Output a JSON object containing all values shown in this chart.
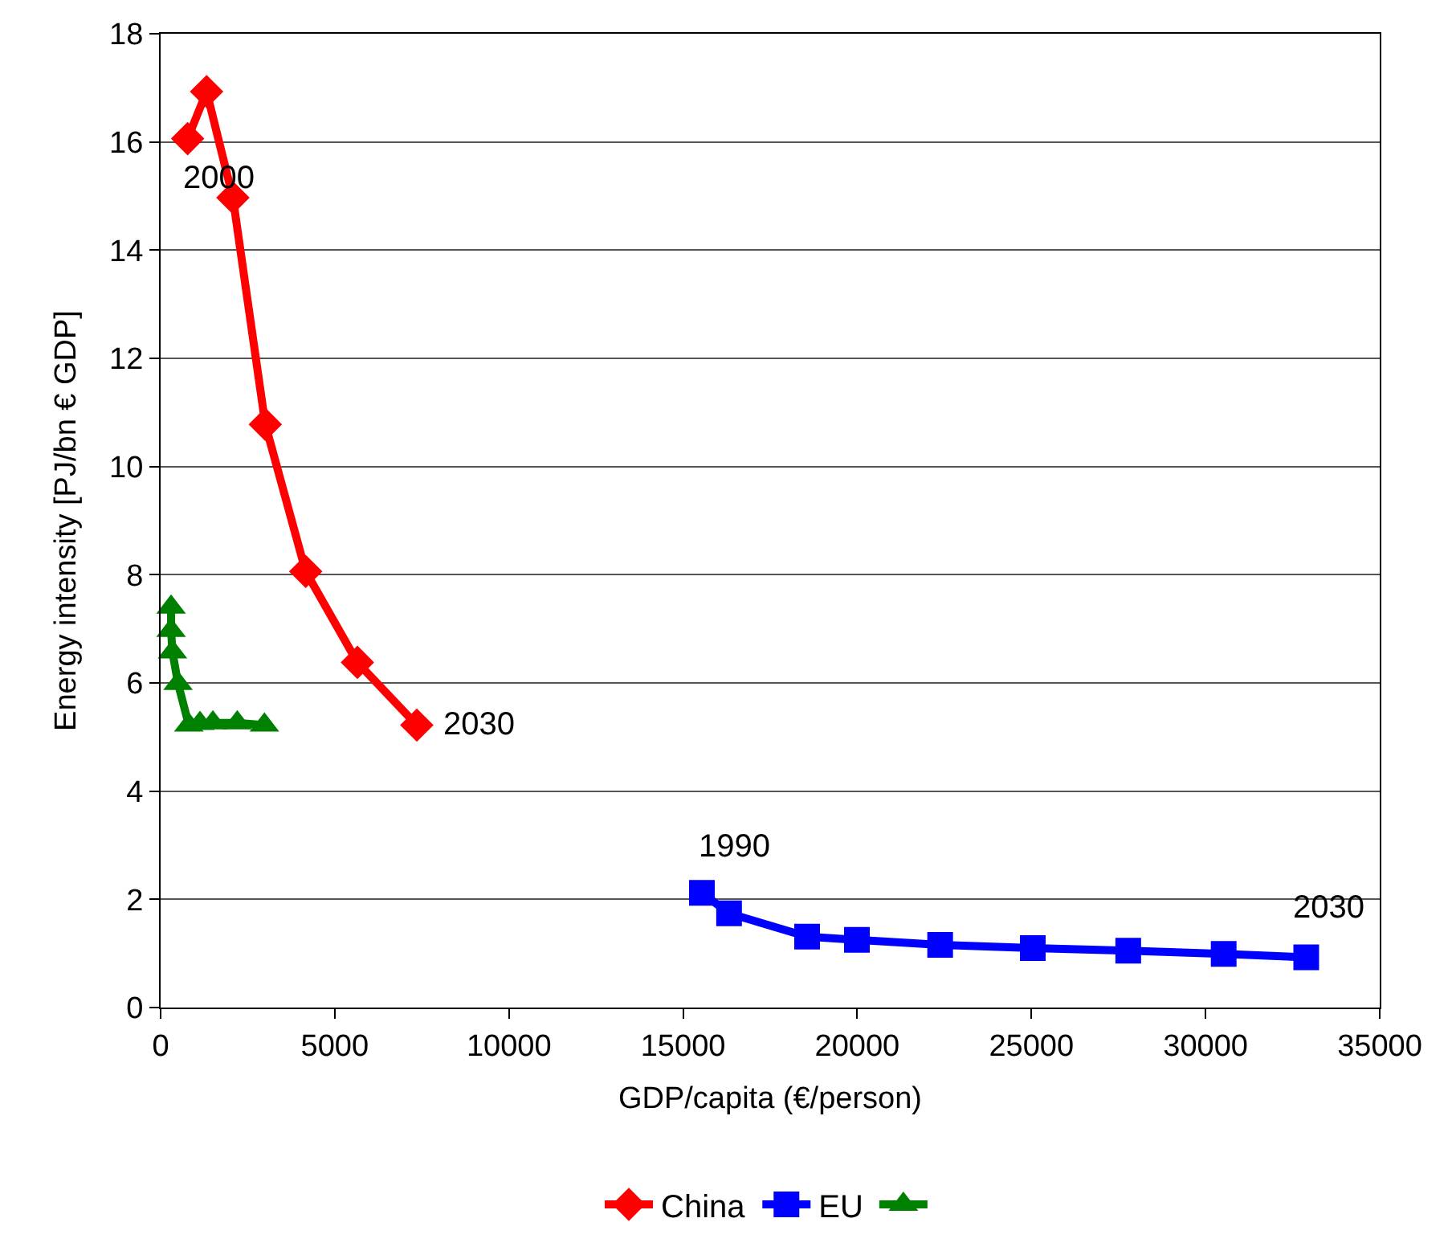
{
  "chart_data": {
    "type": "line",
    "xlabel": "GDP/capita (€/person)",
    "ylabel": "Energy intensity [PJ/bn € GDP]",
    "series": [
      {
        "name": "China",
        "color": "#ff0000",
        "marker": "diamond",
        "x": [
          775,
          1320,
          2075,
          3005,
          4165,
          5650,
          7355
        ],
        "values": [
          16.06,
          16.93,
          14.97,
          10.78,
          8.06,
          6.38,
          5.22
        ]
      },
      {
        "name": "EU",
        "color": "#0000ff",
        "marker": "square",
        "x": [
          15540,
          16320,
          18560,
          19990,
          22380,
          25040,
          27780,
          30520,
          32890
        ],
        "values": [
          2.12,
          1.74,
          1.31,
          1.25,
          1.16,
          1.1,
          1.05,
          0.99,
          0.93
        ]
      },
      {
        "color": "#008000",
        "marker": "triangle",
        "x": [
          300,
          300,
          340,
          500,
          810,
          1130,
          1500,
          2200,
          2980
        ],
        "values": [
          7.4,
          6.97,
          6.57,
          5.99,
          5.22,
          5.25,
          5.26,
          5.26,
          5.22
        ]
      }
    ],
    "annotations": [
      {
        "text": "2000",
        "x": 775,
        "y": 16.06
      },
      {
        "text": "2030",
        "x": 7355,
        "y": 5.22
      },
      {
        "text": "1990",
        "x": 15540,
        "y": 2.12
      },
      {
        "text": "2030",
        "x": 32890,
        "y": 0.93
      }
    ],
    "xlim": [
      0,
      35000
    ],
    "xticks": [
      0,
      5000,
      10000,
      15000,
      20000,
      25000,
      30000,
      35000
    ],
    "ylim": [
      0,
      18
    ],
    "yticks": [
      0,
      2,
      4,
      6,
      8,
      10,
      12,
      14,
      16,
      18
    ],
    "grid": "y",
    "legend": "bottom",
    "line_style": "solid"
  }
}
